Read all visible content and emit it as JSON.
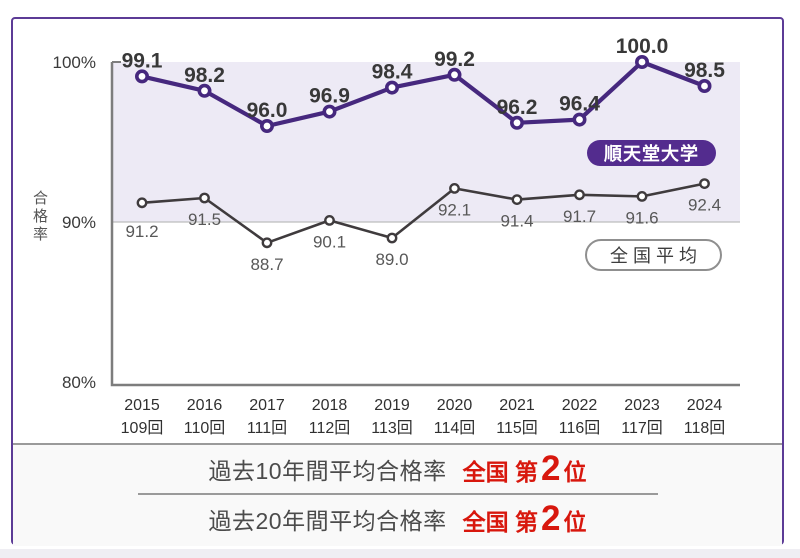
{
  "colors": {
    "frame_border": "#5c3b96",
    "juntendo_purple": "#46287e",
    "juntendo_badge_bg": "#532c8e",
    "national_gray": "#3f3b3d",
    "band_fill": "#edeaf5",
    "axis_gray": "#7d7d7d",
    "gridline_gray": "#bdbdbd",
    "series_label_dark": "#383838",
    "series_label_gray": "#585858",
    "rank_red": "#d8170d"
  },
  "chart_data": {
    "type": "line",
    "title": "",
    "ylabel": "合格率",
    "x_years": [
      "2015",
      "2016",
      "2017",
      "2018",
      "2019",
      "2020",
      "2021",
      "2022",
      "2023",
      "2024"
    ],
    "x_exams": [
      "109回",
      "110回",
      "111回",
      "112回",
      "113回",
      "114回",
      "115回",
      "116回",
      "117回",
      "118回"
    ],
    "series": [
      {
        "name": "順天堂大学",
        "values": [
          99.1,
          98.2,
          96.0,
          96.9,
          98.4,
          99.2,
          96.2,
          96.4,
          100.0,
          98.5
        ],
        "color": "#46287e"
      },
      {
        "name": "全国平均",
        "values": [
          91.2,
          91.5,
          88.7,
          90.1,
          89.0,
          92.1,
          91.4,
          91.7,
          91.6,
          92.4
        ],
        "color": "#3f3b3d"
      }
    ],
    "ylim": [
      80,
      100
    ],
    "yticks": [
      100,
      90,
      80
    ],
    "ytick_labels": [
      "100%",
      "90%",
      "80%"
    ],
    "shaded_band": [
      90,
      100
    ],
    "grid": "90% line only",
    "legend_position": "inside right, badges"
  },
  "footer": {
    "rows": [
      {
        "label": "過去10年間平均合格率",
        "rank_prefix": "全国 第",
        "rank_number": "2",
        "rank_suffix": "位"
      },
      {
        "label": "過去20年間平均合格率",
        "rank_prefix": "全国 第",
        "rank_number": "2",
        "rank_suffix": "位"
      }
    ]
  }
}
